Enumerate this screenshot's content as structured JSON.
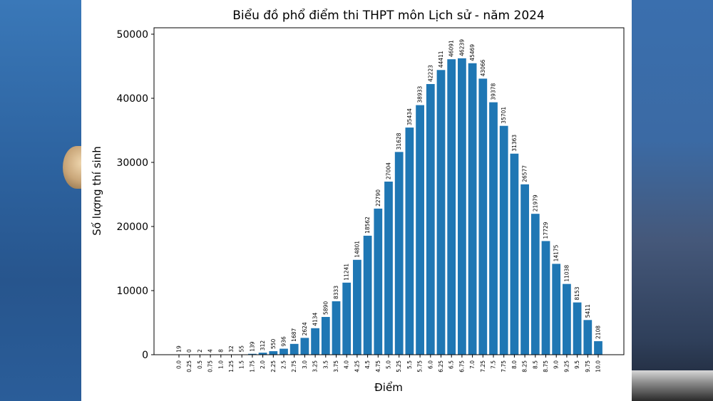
{
  "chart_data": {
    "type": "bar",
    "title": "Biểu đồ phổ điểm thi THPT môn Lịch sử - năm 2024",
    "xlabel": "Điểm",
    "ylabel": "Số lượng thí sinh",
    "ylim": [
      0,
      51000
    ],
    "yticks": [
      "0",
      "10000",
      "20000",
      "30000",
      "40000",
      "50000"
    ],
    "grid": false,
    "bar_color": "#1f77b4",
    "categories": [
      "0.0",
      "0.25",
      "0.5",
      "0.75",
      "1.0",
      "1.25",
      "1.5",
      "1.75",
      "2.0",
      "2.25",
      "2.5",
      "2.75",
      "3.0",
      "3.25",
      "3.5",
      "3.75",
      "4.0",
      "4.25",
      "4.5",
      "4.75",
      "5.0",
      "5.25",
      "5.5",
      "5.75",
      "6.0",
      "6.25",
      "6.5",
      "6.75",
      "7.0",
      "7.25",
      "7.5",
      "7.75",
      "8.0",
      "8.25",
      "8.5",
      "8.75",
      "9.0",
      "9.25",
      "9.5",
      "9.75",
      "10.0"
    ],
    "values": [
      19,
      0,
      2,
      4,
      8,
      32,
      55,
      139,
      312,
      550,
      936,
      1687,
      2624,
      4134,
      5890,
      8333,
      11241,
      14801,
      18562,
      22790,
      27004,
      31628,
      35434,
      38933,
      42223,
      44411,
      46091,
      46239,
      45469,
      43066,
      39378,
      35701,
      31363,
      26577,
      21979,
      17729,
      14175,
      11038,
      8153,
      5411,
      2108
    ]
  }
}
